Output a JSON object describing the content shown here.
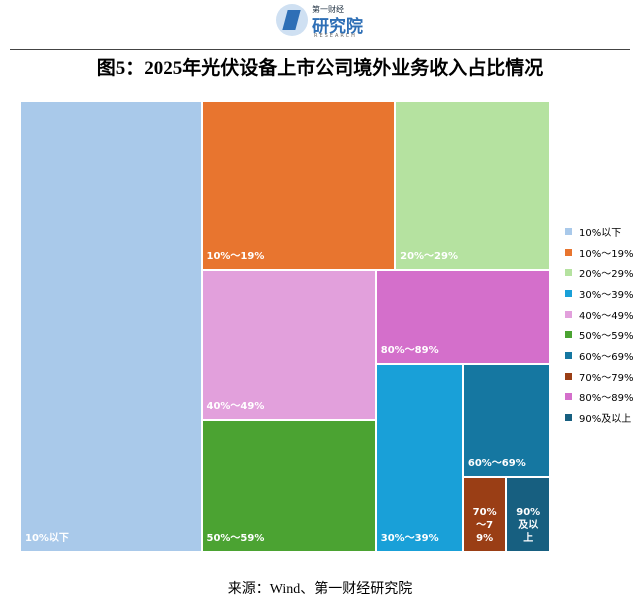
{
  "header": {
    "logo_top": "第一财经",
    "logo": "研究院",
    "logo_sub": "RESEARCH"
  },
  "chart_data": {
    "type": "treemap",
    "title": "图5：2025年光伏设备上市公司境外业务收入占比情况",
    "categories": [
      "10%以下",
      "10%～19%",
      "20%～29%",
      "30%～39%",
      "40%～49%",
      "50%～59%",
      "60%～69%",
      "70%～79%",
      "80%～89%",
      "90%及以上"
    ],
    "values": [
      25,
      10,
      8,
      5,
      8,
      7,
      3,
      1,
      5,
      1
    ],
    "colors": [
      "#a9c9ea",
      "#e8752f",
      "#b5e2a0",
      "#19a0d8",
      "#e2a0dc",
      "#4ba332",
      "#1577a1",
      "#9a3e15",
      "#d46fcb",
      "#175f80"
    ],
    "legend": "right"
  },
  "source": "来源：Wind、第一财经研究院"
}
